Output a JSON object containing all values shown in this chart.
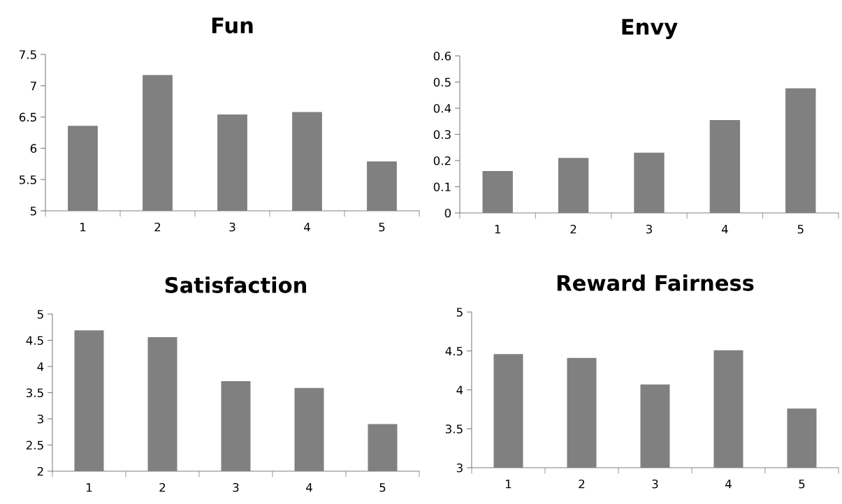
{
  "chart_data": [
    {
      "type": "bar",
      "title": "Fun",
      "categories": [
        "1",
        "2",
        "3",
        "4",
        "5"
      ],
      "values": [
        6.36,
        7.17,
        6.54,
        6.58,
        5.79
      ],
      "color": "#808080",
      "ylim": [
        5,
        7.5
      ],
      "yticks": [
        5,
        5.5,
        6,
        6.5,
        7,
        7.5
      ],
      "grid": false,
      "legend": false
    },
    {
      "type": "bar",
      "title": "Envy",
      "categories": [
        "1",
        "2",
        "3",
        "4",
        "5"
      ],
      "values": [
        0.16,
        0.21,
        0.23,
        0.355,
        0.476
      ],
      "color": "#808080",
      "ylim": [
        0,
        0.6
      ],
      "yticks": [
        0,
        0.1,
        0.2,
        0.3,
        0.4,
        0.5,
        0.6
      ],
      "grid": false,
      "legend": false
    },
    {
      "type": "bar",
      "title": "Satisfaction",
      "categories": [
        "1",
        "2",
        "3",
        "4",
        "5"
      ],
      "values": [
        4.69,
        4.56,
        3.72,
        3.59,
        2.9
      ],
      "color": "#808080",
      "ylim": [
        2,
        5
      ],
      "yticks": [
        2,
        2.5,
        3,
        3.5,
        4,
        4.5,
        5
      ],
      "grid": false,
      "legend": false
    },
    {
      "type": "bar",
      "title": "Reward Fairness",
      "categories": [
        "1",
        "2",
        "3",
        "4",
        "5"
      ],
      "values": [
        4.46,
        4.41,
        4.07,
        4.51,
        3.76
      ],
      "color": "#808080",
      "ylim": [
        3,
        5
      ],
      "yticks": [
        3,
        3.5,
        4,
        4.5,
        5
      ],
      "grid": false,
      "legend": false
    }
  ]
}
